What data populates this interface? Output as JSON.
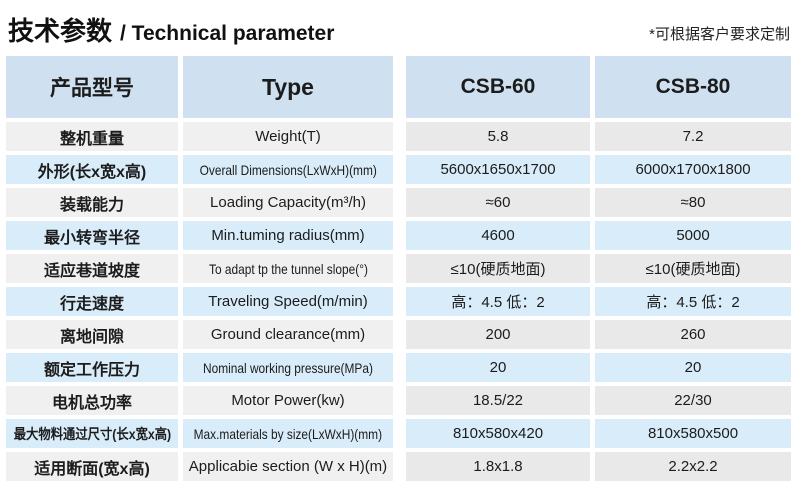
{
  "header": {
    "title_zh": "技术参数",
    "title_en": "/ Technical parameter",
    "note": "*可根据客户要求定制"
  },
  "colors": {
    "header_bg": "#cfe1f0",
    "row_blue": "#d8ecf9",
    "row_gray_left": "#f0f0f0",
    "row_gray_right": "#e9e9e9"
  },
  "table": {
    "columns": {
      "param_zh": "产品型号",
      "param_en": "Type",
      "model1": "CSB-60",
      "model2": "CSB-80"
    },
    "rows": [
      {
        "zh": "整机重量",
        "en": "Weight(T)",
        "csb60": "5.8",
        "csb80": "7.2"
      },
      {
        "zh": "外形(长x宽x高)",
        "en": "Overall Dimensions(LxWxH)(mm)",
        "csb60": "5600x1650x1700",
        "csb80": "6000x1700x1800"
      },
      {
        "zh": "装载能力",
        "en": "Loading Capacity(m³/h)",
        "csb60": "≈60",
        "csb80": "≈80"
      },
      {
        "zh": "最小转弯半径",
        "en": "Min.tuming radius(mm)",
        "csb60": "4600",
        "csb80": "5000"
      },
      {
        "zh": "适应巷道坡度",
        "en": "To adapt tp the tunnel slope(°)",
        "csb60": "≤10(硬质地面)",
        "csb80": "≤10(硬质地面)"
      },
      {
        "zh": "行走速度",
        "en": "Traveling Speed(m/min)",
        "csb60": "高：4.5 低：2",
        "csb80": "高：4.5 低：2"
      },
      {
        "zh": "离地间隙",
        "en": "Ground clearance(mm)",
        "csb60": "200",
        "csb80": "260"
      },
      {
        "zh": "额定工作压力",
        "en": "Nominal working pressure(MPa)",
        "csb60": "20",
        "csb80": "20"
      },
      {
        "zh": "电机总功率",
        "en": "Motor Power(kw)",
        "csb60": "18.5/22",
        "csb80": "22/30"
      },
      {
        "zh": "最大物料通过尺寸(长x宽x高)",
        "en": "Max.materials by size(LxWxH)(mm)",
        "csb60": "810x580x420",
        "csb80": "810x580x500"
      },
      {
        "zh": "适用断面(宽x高)",
        "en": "Applicabie section (W x H)(m)",
        "csb60": "1.8x1.8",
        "csb80": "2.2x2.2"
      }
    ]
  }
}
